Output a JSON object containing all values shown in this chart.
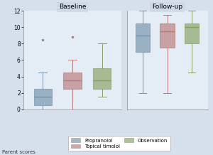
{
  "title_baseline": "Baseline",
  "title_followup": "Follow-up",
  "xlabel": "Parent scores",
  "ylim": [
    0,
    12
  ],
  "yticks": [
    0,
    2,
    4,
    6,
    8,
    10,
    12
  ],
  "colors": {
    "propranolol": "#7391aa",
    "topical": "#b87878",
    "observation": "#85a060"
  },
  "baseline": {
    "propranolol": {
      "q1": 0.5,
      "median": 1.5,
      "q3": 2.5,
      "whislo": 0.0,
      "whishi": 4.5,
      "fliers_y": [
        8.5
      ]
    },
    "topical": {
      "q1": 2.5,
      "median": 3.5,
      "q3": 4.5,
      "whislo": 0.0,
      "whishi": 6.0,
      "fliers_y": [
        8.8
      ]
    },
    "observation": {
      "q1": 2.5,
      "median": 3.5,
      "q3": 5.0,
      "whislo": 1.5,
      "whishi": 8.0,
      "fliers_y": []
    }
  },
  "followup": {
    "propranolol": {
      "q1": 7.0,
      "median": 9.0,
      "q3": 10.5,
      "whislo": 2.0,
      "whishi": 12.0,
      "fliers_y": []
    },
    "topical": {
      "q1": 7.5,
      "median": 9.5,
      "q3": 10.5,
      "whislo": 2.0,
      "whishi": 11.5,
      "fliers_y": []
    },
    "observation": {
      "q1": 8.0,
      "median": 10.0,
      "q3": 10.5,
      "whislo": 4.5,
      "whishi": 12.0,
      "fliers_y": []
    }
  },
  "bg_color": "#d5e0ec",
  "panel_bg": "#e4edf5",
  "panel_title_bg": "#cdd8e4",
  "legend_labels": [
    "Propranolol",
    "Topical timolol",
    "Observation"
  ]
}
